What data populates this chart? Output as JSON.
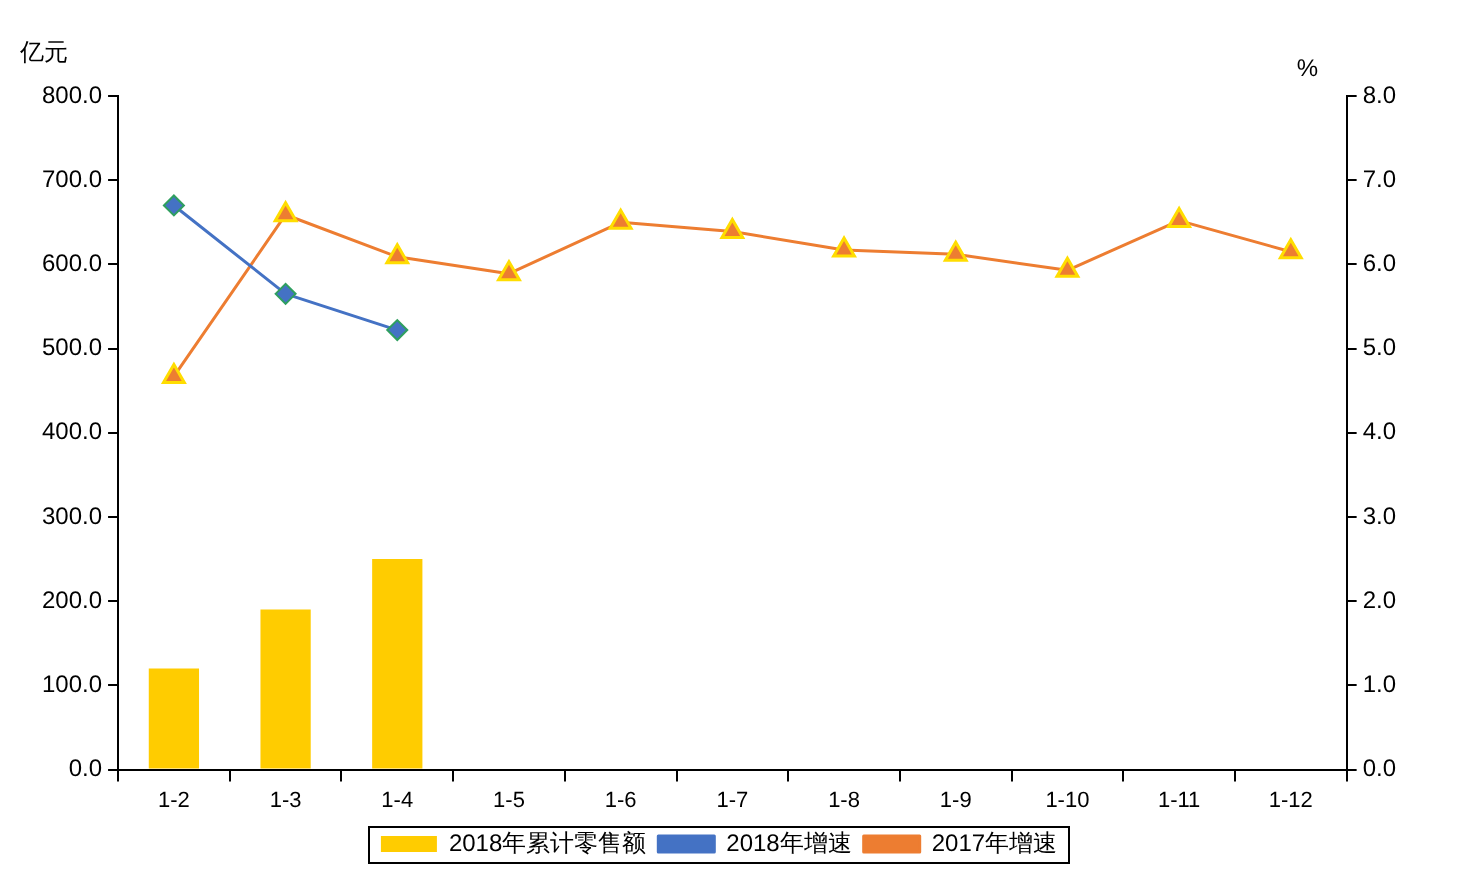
{
  "chart_data": {
    "type": "bar",
    "ylabel": "亿元",
    "y2label": "%",
    "categories": [
      "1-2",
      "1-3",
      "1-4",
      "1-5",
      "1-6",
      "1-7",
      "1-8",
      "1-9",
      "1-10",
      "1-11",
      "1-12"
    ],
    "series": [
      {
        "name": "2018年累计零售额",
        "color": "#ffcc00",
        "values": [
          120,
          190,
          250,
          null,
          null,
          null,
          null,
          null,
          null,
          null,
          null
        ]
      },
      {
        "name": "2018年增速",
        "type": "line",
        "axis": "y2",
        "marker": "diamond",
        "color": "#4472c4",
        "values": [
          6.7,
          5.65,
          5.22,
          null,
          null,
          null,
          null,
          null,
          null,
          null,
          null
        ]
      },
      {
        "name": "2017年增速",
        "type": "line",
        "axis": "y2",
        "marker": "triangle",
        "color": "#ed7d31",
        "values": [
          4.67,
          6.59,
          6.09,
          5.89,
          6.5,
          6.39,
          6.17,
          6.12,
          5.93,
          6.52,
          6.15
        ]
      }
    ],
    "ylim": [
      0,
      800
    ],
    "yticks": [
      {
        "value": 0,
        "label": "0.0"
      },
      {
        "value": 100,
        "label": "100.0"
      },
      {
        "value": 200,
        "label": "200.0"
      },
      {
        "value": 300,
        "label": "300.0"
      },
      {
        "value": 400,
        "label": "400.0"
      },
      {
        "value": 500,
        "label": "500.0"
      },
      {
        "value": 600,
        "label": "600.0"
      },
      {
        "value": 700,
        "label": "700.0"
      },
      {
        "value": 800,
        "label": "800.0"
      }
    ],
    "y2lim": [
      0,
      8
    ],
    "y2ticks": [
      {
        "value": 0,
        "label": "0.0"
      },
      {
        "value": 1,
        "label": "1.0"
      },
      {
        "value": 2,
        "label": "2.0"
      },
      {
        "value": 3,
        "label": "3.0"
      },
      {
        "value": 4,
        "label": "4.0"
      },
      {
        "value": 5,
        "label": "5.0"
      },
      {
        "value": 6,
        "label": "6.0"
      },
      {
        "value": 7,
        "label": "7.0"
      },
      {
        "value": 8,
        "label": "8.0"
      }
    ],
    "grid": false,
    "legend": "bottom"
  }
}
